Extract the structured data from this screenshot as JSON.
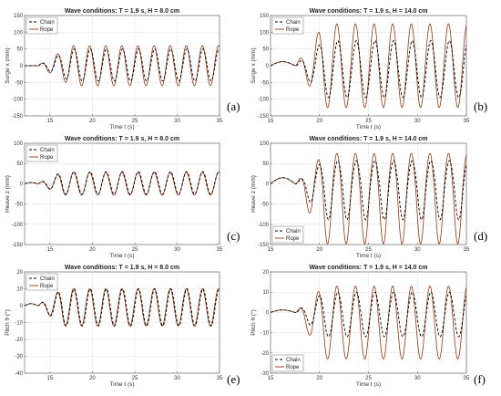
{
  "figure": {
    "series_legend": [
      "Chain",
      "Rope"
    ]
  },
  "chart_data": [
    {
      "id": "a",
      "type": "line",
      "panel_label": "(a)",
      "title": "Wave conditions: T = 1.9 s, H = 8.0 cm",
      "xlabel": "Time t (s)",
      "ylabel": "Surge  x (mm)",
      "xlim": [
        12,
        35
      ],
      "ylim": [
        -150,
        150
      ],
      "xticks": [
        15,
        20,
        25,
        30,
        35
      ],
      "yticks": [
        -150,
        -100,
        -50,
        0,
        50,
        100,
        150
      ],
      "grid": true,
      "legend": "top-left",
      "signal": {
        "start": 12,
        "onset": 13.5,
        "ramp": 4,
        "period": 1.9,
        "base": 0,
        "chain_amp": 48,
        "rope_amp": 60,
        "chain_phase": 0.25,
        "rope_phase": 0.0,
        "chain_offset": 2,
        "rope_offset": 0,
        "asym": 0
      },
      "series": [
        {
          "name": "Chain",
          "color": "#000000",
          "dash": "3,2"
        },
        {
          "name": "Rope",
          "color": "#8B3A1A",
          "dash": ""
        }
      ]
    },
    {
      "id": "b",
      "type": "line",
      "panel_label": "(b)",
      "title": "Wave conditions: T = 1.9 s, H = 14.0 cm",
      "xlabel": "Time t (s)",
      "ylabel": "Surge  x (mm)",
      "xlim": [
        15,
        35
      ],
      "ylim": [
        -150,
        150
      ],
      "xticks": [
        15,
        20,
        25,
        30,
        35
      ],
      "yticks": [
        -150,
        -100,
        -50,
        0,
        50,
        100,
        150
      ],
      "grid": true,
      "legend": "top-left",
      "signal": {
        "start": 15,
        "onset": 17.5,
        "ramp": 3,
        "period": 1.9,
        "base": 20,
        "chain_amp": 85,
        "rope_amp": 125,
        "chain_phase": 0.3,
        "rope_phase": 0.0,
        "chain_offset": -10,
        "rope_offset": 0,
        "asym": 0
      },
      "series": [
        {
          "name": "Chain",
          "color": "#000000",
          "dash": "3,2"
        },
        {
          "name": "Rope",
          "color": "#8B3A1A",
          "dash": ""
        }
      ]
    },
    {
      "id": "c",
      "type": "line",
      "panel_label": "(c)",
      "title": "Wave conditions: T = 1.9 s, H = 8.0 cm",
      "xlabel": "Time t (s)",
      "ylabel": "Heave  z (mm)",
      "xlim": [
        12,
        35
      ],
      "ylim": [
        -150,
        100
      ],
      "xticks": [
        15,
        20,
        25,
        30,
        35
      ],
      "yticks": [
        -150,
        -100,
        -50,
        0,
        50,
        100
      ],
      "grid": true,
      "legend": "top-left",
      "signal": {
        "start": 12,
        "onset": 13.5,
        "ramp": 3,
        "period": 1.9,
        "base": 5,
        "chain_amp": 28,
        "rope_amp": 28,
        "chain_phase": 0.15,
        "rope_phase": 0.0,
        "chain_offset": 2,
        "rope_offset": 0,
        "asym": 0
      },
      "series": [
        {
          "name": "Chain",
          "color": "#000000",
          "dash": "3,2"
        },
        {
          "name": "Rope",
          "color": "#8B3A1A",
          "dash": ""
        }
      ]
    },
    {
      "id": "d",
      "type": "line",
      "panel_label": "(d)",
      "title": "Wave conditions: T = 1.9 s, H = 14.0 cm",
      "xlabel": "Time t (s)",
      "ylabel": "Heave  z (mm)",
      "xlim": [
        15,
        35
      ],
      "ylim": [
        -150,
        100
      ],
      "xticks": [
        15,
        20,
        25,
        30,
        35
      ],
      "yticks": [
        -150,
        -100,
        -50,
        0,
        50,
        100
      ],
      "grid": true,
      "legend": "bottom-left",
      "signal": {
        "start": 15,
        "onset": 17.5,
        "ramp": 3,
        "period": 1.9,
        "base": 25,
        "chain_amp": 62,
        "rope_amp": 95,
        "chain_phase": 0.3,
        "rope_phase": 0.0,
        "chain_offset": -5,
        "rope_offset": -20,
        "asym": 0.35
      },
      "series": [
        {
          "name": "Chain",
          "color": "#000000",
          "dash": "3,2"
        },
        {
          "name": "Rope",
          "color": "#8B3A1A",
          "dash": ""
        }
      ]
    },
    {
      "id": "e",
      "type": "line",
      "panel_label": "(e)",
      "title": "Wave conditions: T = 1.9 s, H = 8.0 cm",
      "xlabel": "Time t (s)",
      "ylabel": "Pitch  θ (°)",
      "xlim": [
        12,
        35
      ],
      "ylim": [
        -40,
        20
      ],
      "xticks": [
        15,
        20,
        25,
        30,
        35
      ],
      "yticks": [
        -40,
        -30,
        -20,
        -10,
        0,
        10,
        20
      ],
      "grid": true,
      "legend": "top-left",
      "signal": {
        "start": 12,
        "onset": 13.5,
        "ramp": 3,
        "period": 1.9,
        "base": 2,
        "chain_amp": 11,
        "rope_amp": 11,
        "chain_phase": 0.25,
        "rope_phase": 0.0,
        "chain_offset": -1,
        "rope_offset": -1,
        "asym": 0
      },
      "series": [
        {
          "name": "Chain",
          "color": "#000000",
          "dash": "3,2"
        },
        {
          "name": "Rope",
          "color": "#8B3A1A",
          "dash": ""
        }
      ]
    },
    {
      "id": "f",
      "type": "line",
      "panel_label": "(f)",
      "title": "Wave conditions: T = 1.9 s, H = 14.0 cm",
      "xlabel": "Time t (s)",
      "ylabel": "Pitch  θ (°)",
      "xlim": [
        15,
        35
      ],
      "ylim": [
        -30,
        20
      ],
      "xticks": [
        15,
        20,
        25,
        30,
        35
      ],
      "yticks": [
        -30,
        -20,
        -10,
        0,
        10,
        20
      ],
      "grid": true,
      "legend": "bottom-left",
      "signal": {
        "start": 15,
        "onset": 17.5,
        "ramp": 3,
        "period": 1.9,
        "base": 2,
        "chain_amp": 11,
        "rope_amp": 18,
        "chain_phase": 0.3,
        "rope_phase": 0.0,
        "chain_offset": -1,
        "rope_offset": -5,
        "asym": 0
      },
      "series": [
        {
          "name": "Chain",
          "color": "#000000",
          "dash": "3,2"
        },
        {
          "name": "Rope",
          "color": "#8B3A1A",
          "dash": ""
        }
      ]
    }
  ]
}
